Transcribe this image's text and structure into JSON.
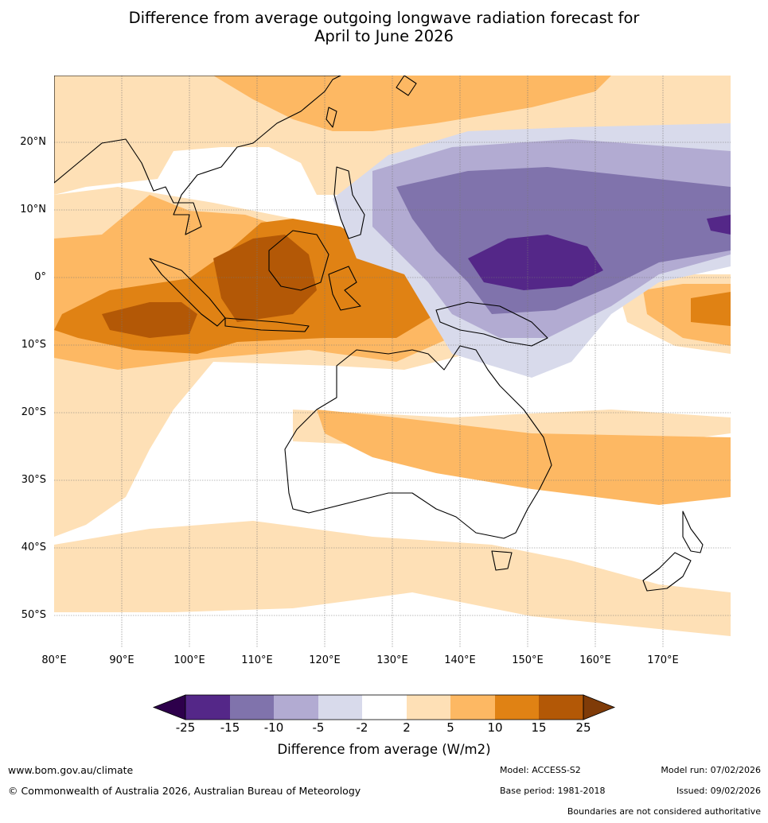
{
  "title": {
    "line1": "Difference from average outgoing longwave radiation forecast for",
    "line2": "April to June 2026"
  },
  "map": {
    "lat_labels": [
      "20°N",
      "10°N",
      "0°",
      "10°S",
      "20°S",
      "30°S",
      "40°S",
      "50°S"
    ],
    "lon_labels": [
      "80°E",
      "90°E",
      "100°E",
      "110°E",
      "120°E",
      "130°E",
      "140°E",
      "150°E",
      "160°E",
      "170°E"
    ],
    "extent": {
      "lon_min": 80,
      "lon_max": 180,
      "lat_min": -55,
      "lat_max": 30
    }
  },
  "colorbar": {
    "title": "Difference from average (W/m2)",
    "ticks": [
      "-25",
      "-15",
      "-10",
      "-5",
      "-2",
      "2",
      "5",
      "10",
      "15",
      "25"
    ],
    "under_color": "#2d004b",
    "over_color": "#7f3b08",
    "colors": [
      "#542788",
      "#8073ac",
      "#b2abd2",
      "#d8daeb",
      "#ffffff",
      "#fee0b6",
      "#fdb863",
      "#e08214",
      "#b35806"
    ]
  },
  "footer": {
    "website": "www.bom.gov.au/climate",
    "copyright": "© Commonwealth of Australia 2026, Australian Bureau of Meteorology",
    "model": "Model: ACCESS-S2",
    "base_period": "Base period: 1981-2018",
    "model_run": "Model run: 07/02/2026",
    "issued": "Issued: 09/02/2026",
    "disclaimer": "Boundaries are not considered authoritative"
  }
}
